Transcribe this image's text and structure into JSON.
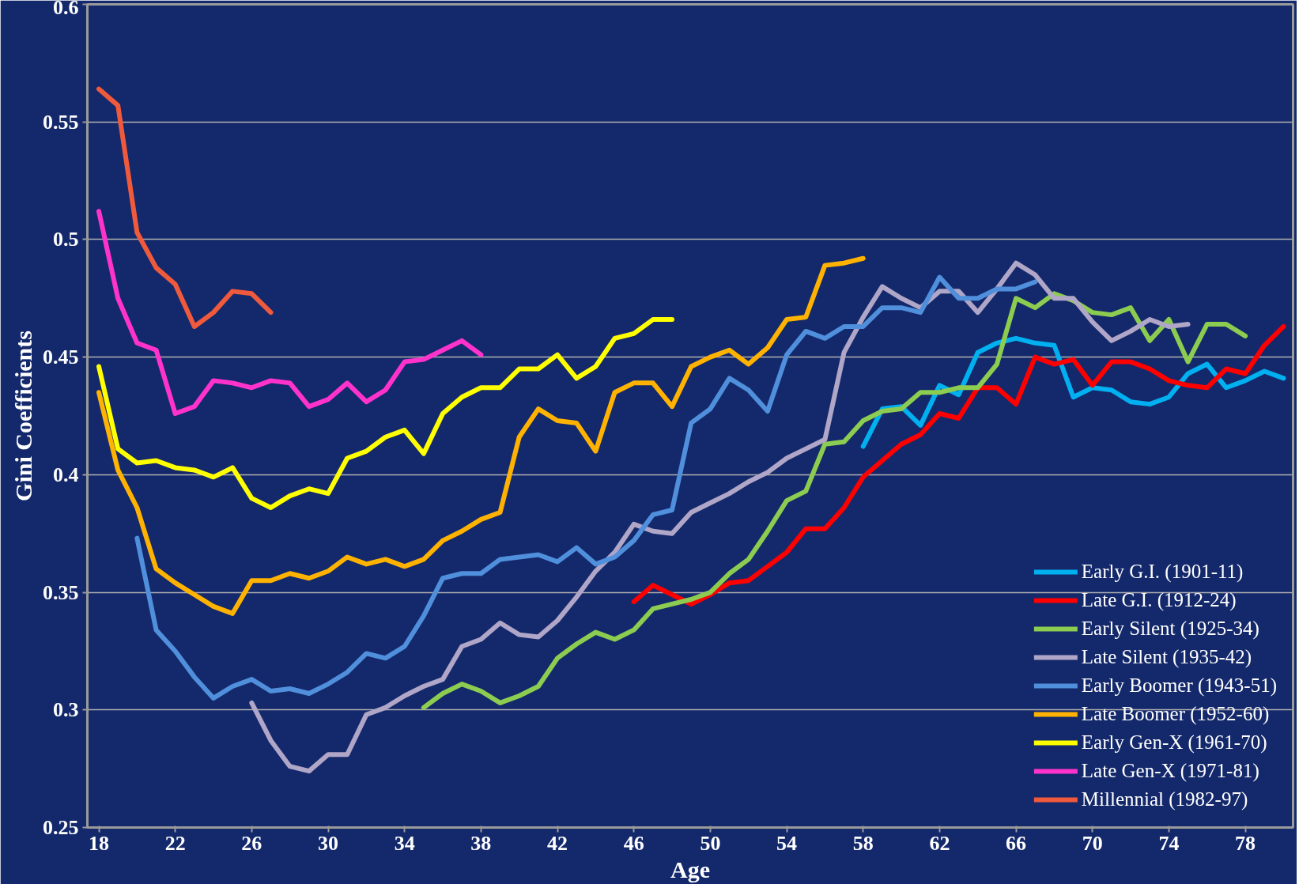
{
  "chart_data": {
    "type": "line",
    "xlabel": "Age",
    "ylabel": "Gini Coefficients",
    "xlim": [
      17.4,
      80.5
    ],
    "ylim": [
      0.25,
      0.6
    ],
    "xticks": [
      18,
      22,
      26,
      30,
      34,
      38,
      42,
      46,
      50,
      54,
      58,
      62,
      66,
      70,
      74,
      78
    ],
    "yticks": [
      0.25,
      0.3,
      0.35,
      0.4,
      0.45,
      0.5,
      0.55,
      0.6
    ],
    "grid": "y",
    "legend": "bottom right",
    "marker": "none",
    "line_style": "solid",
    "series": [
      {
        "name": "Early G.I. (1901-11)",
        "color": "#00b0f0",
        "x": [
          58,
          59,
          60,
          61,
          62,
          63,
          64,
          65,
          66,
          67,
          68,
          69,
          70,
          71,
          72,
          73,
          74,
          75,
          76,
          77,
          78,
          79,
          80
        ],
        "values": [
          0.412,
          0.428,
          0.429,
          0.421,
          0.438,
          0.434,
          0.452,
          0.456,
          0.458,
          0.456,
          0.455,
          0.433,
          0.437,
          0.436,
          0.431,
          0.43,
          0.433,
          0.443,
          0.447,
          0.437,
          0.44,
          0.444,
          0.441
        ]
      },
      {
        "name": "Late G.I. (1912-24)",
        "color": "#ff0000",
        "x": [
          46,
          47,
          48,
          49,
          50,
          51,
          52,
          53,
          54,
          55,
          56,
          57,
          58,
          59,
          60,
          61,
          62,
          63,
          64,
          65,
          66,
          67,
          68,
          69,
          70,
          71,
          72,
          73,
          74,
          75,
          76,
          77,
          78,
          79,
          80
        ],
        "values": [
          0.346,
          0.353,
          0.349,
          0.345,
          0.349,
          0.354,
          0.355,
          0.361,
          0.367,
          0.377,
          0.377,
          0.386,
          0.399,
          0.406,
          0.413,
          0.417,
          0.426,
          0.424,
          0.437,
          0.437,
          0.43,
          0.45,
          0.447,
          0.449,
          0.438,
          0.448,
          0.448,
          0.445,
          0.44,
          0.438,
          0.437,
          0.445,
          0.443,
          0.455,
          0.463
        ]
      },
      {
        "name": "Early Silent (1925-34)",
        "color": "#8ccc50",
        "x": [
          35,
          36,
          37,
          38,
          39,
          40,
          41,
          42,
          43,
          44,
          45,
          46,
          47,
          48,
          49,
          50,
          51,
          52,
          53,
          54,
          55,
          56,
          57,
          58,
          59,
          60,
          61,
          62,
          63,
          64,
          65,
          66,
          67,
          68,
          69,
          70,
          71,
          72,
          73,
          74,
          75,
          76,
          77,
          78
        ],
        "values": [
          0.301,
          0.307,
          0.311,
          0.308,
          0.303,
          0.306,
          0.31,
          0.322,
          0.328,
          0.333,
          0.33,
          0.334,
          0.343,
          0.345,
          0.347,
          0.35,
          0.358,
          0.364,
          0.376,
          0.389,
          0.393,
          0.413,
          0.414,
          0.423,
          0.427,
          0.428,
          0.435,
          0.435,
          0.437,
          0.437,
          0.447,
          0.475,
          0.471,
          0.477,
          0.474,
          0.469,
          0.468,
          0.471,
          0.457,
          0.466,
          0.448,
          0.464,
          0.464,
          0.459
        ]
      },
      {
        "name": "Late Silent (1935-42)",
        "color": "#b0a6c8",
        "x": [
          26,
          27,
          28,
          29,
          30,
          31,
          32,
          33,
          34,
          35,
          36,
          37,
          38,
          39,
          40,
          41,
          42,
          43,
          44,
          45,
          46,
          47,
          48,
          49,
          50,
          51,
          52,
          53,
          54,
          55,
          56,
          57,
          58,
          59,
          60,
          61,
          62,
          63,
          64,
          65,
          66,
          67,
          68,
          69,
          70,
          71,
          72,
          73,
          74,
          75
        ],
        "values": [
          0.303,
          0.287,
          0.276,
          0.274,
          0.281,
          0.281,
          0.298,
          0.301,
          0.306,
          0.31,
          0.313,
          0.327,
          0.33,
          0.337,
          0.332,
          0.331,
          0.338,
          0.348,
          0.359,
          0.367,
          0.379,
          0.376,
          0.375,
          0.384,
          0.388,
          0.392,
          0.397,
          0.401,
          0.407,
          0.411,
          0.415,
          0.452,
          0.467,
          0.48,
          0.475,
          0.471,
          0.478,
          0.478,
          0.469,
          0.479,
          0.49,
          0.485,
          0.475,
          0.475,
          0.465,
          0.457,
          0.461,
          0.466,
          0.463,
          0.464
        ]
      },
      {
        "name": "Early Boomer (1943-51)",
        "color": "#4f8fdc",
        "x": [
          20,
          21,
          22,
          23,
          24,
          25,
          26,
          27,
          28,
          29,
          30,
          31,
          32,
          33,
          34,
          35,
          36,
          37,
          38,
          39,
          40,
          41,
          42,
          43,
          44,
          45,
          46,
          47,
          48,
          49,
          50,
          51,
          52,
          53,
          54,
          55,
          56,
          57,
          58,
          59,
          60,
          61,
          62,
          63,
          64,
          65,
          66,
          67
        ],
        "values": [
          0.373,
          0.334,
          0.325,
          0.314,
          0.305,
          0.31,
          0.313,
          0.308,
          0.309,
          0.307,
          0.311,
          0.316,
          0.324,
          0.322,
          0.327,
          0.34,
          0.356,
          0.358,
          0.358,
          0.364,
          0.365,
          0.366,
          0.363,
          0.369,
          0.362,
          0.365,
          0.372,
          0.383,
          0.385,
          0.422,
          0.428,
          0.441,
          0.436,
          0.427,
          0.451,
          0.461,
          0.458,
          0.463,
          0.463,
          0.471,
          0.471,
          0.469,
          0.484,
          0.475,
          0.475,
          0.479,
          0.479,
          0.482
        ]
      },
      {
        "name": "Late Boomer (1952-60)",
        "color": "#ffb300",
        "x": [
          18,
          19,
          20,
          21,
          22,
          23,
          24,
          25,
          26,
          27,
          28,
          29,
          30,
          31,
          32,
          33,
          34,
          35,
          36,
          37,
          38,
          39,
          40,
          41,
          42,
          43,
          44,
          45,
          46,
          47,
          48,
          49,
          50,
          51,
          52,
          53,
          54,
          55,
          56,
          57,
          58
        ],
        "values": [
          0.435,
          0.402,
          0.386,
          0.36,
          0.354,
          0.349,
          0.344,
          0.341,
          0.355,
          0.355,
          0.358,
          0.356,
          0.359,
          0.365,
          0.362,
          0.364,
          0.361,
          0.364,
          0.372,
          0.376,
          0.381,
          0.384,
          0.416,
          0.428,
          0.423,
          0.422,
          0.41,
          0.435,
          0.439,
          0.439,
          0.429,
          0.446,
          0.45,
          0.453,
          0.447,
          0.454,
          0.466,
          0.467,
          0.489,
          0.49,
          0.492
        ]
      },
      {
        "name": "Early Gen-X (1961-70)",
        "color": "#ffff00",
        "x": [
          18,
          19,
          20,
          21,
          22,
          23,
          24,
          25,
          26,
          27,
          28,
          29,
          30,
          31,
          32,
          33,
          34,
          35,
          36,
          37,
          38,
          39,
          40,
          41,
          42,
          43,
          44,
          45,
          46,
          47,
          48
        ],
        "values": [
          0.446,
          0.411,
          0.405,
          0.406,
          0.403,
          0.402,
          0.399,
          0.403,
          0.39,
          0.386,
          0.391,
          0.394,
          0.392,
          0.407,
          0.41,
          0.416,
          0.419,
          0.409,
          0.426,
          0.433,
          0.437,
          0.437,
          0.445,
          0.445,
          0.451,
          0.441,
          0.446,
          0.458,
          0.46,
          0.466,
          0.466
        ]
      },
      {
        "name": "Late Gen-X (1971-81)",
        "color": "#ff33cc",
        "x": [
          18,
          19,
          20,
          21,
          22,
          23,
          24,
          25,
          26,
          27,
          28,
          29,
          30,
          31,
          32,
          33,
          34,
          35,
          36,
          37,
          38
        ],
        "values": [
          0.512,
          0.475,
          0.456,
          0.453,
          0.426,
          0.429,
          0.44,
          0.439,
          0.437,
          0.44,
          0.439,
          0.429,
          0.432,
          0.439,
          0.431,
          0.436,
          0.448,
          0.449,
          0.453,
          0.457,
          0.451
        ]
      },
      {
        "name": "Millennial (1982-97)",
        "color": "#f05a3c",
        "x": [
          18,
          19,
          20,
          21,
          22,
          23,
          24,
          25,
          26,
          27
        ],
        "values": [
          0.564,
          0.557,
          0.503,
          0.488,
          0.481,
          0.463,
          0.469,
          0.478,
          0.477,
          0.469
        ]
      }
    ]
  }
}
